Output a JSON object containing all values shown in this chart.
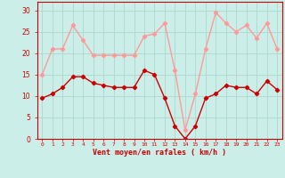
{
  "x": [
    0,
    1,
    2,
    3,
    4,
    5,
    6,
    7,
    8,
    9,
    10,
    11,
    12,
    13,
    14,
    15,
    16,
    17,
    18,
    19,
    20,
    21,
    22,
    23
  ],
  "vent_moyen": [
    9.5,
    10.5,
    12,
    14.5,
    14.5,
    13,
    12.5,
    12,
    12,
    12,
    16,
    15,
    9.5,
    3,
    0,
    3,
    9.5,
    10.5,
    12.5,
    12,
    12,
    10.5,
    13.5,
    11.5
  ],
  "rafales": [
    15,
    21,
    21,
    26.5,
    23,
    19.5,
    19.5,
    19.5,
    19.5,
    19.5,
    24,
    24.5,
    27,
    16,
    2,
    10.5,
    21,
    29.5,
    27,
    25,
    26.5,
    23.5,
    27,
    21
  ],
  "color_moyen": "#cc0000",
  "color_rafales": "#ff9999",
  "bg_color": "#cceee8",
  "grid_color": "#aad8d0",
  "xlabel": "Vent moyen/en rafales ( km/h )",
  "xlabel_color": "#cc0000",
  "yticks": [
    0,
    5,
    10,
    15,
    20,
    25,
    30
  ],
  "ylim": [
    0,
    32
  ],
  "xlim": [
    -0.5,
    23.5
  ],
  "marker": "D",
  "markersize": 2.2,
  "linewidth": 1.0
}
